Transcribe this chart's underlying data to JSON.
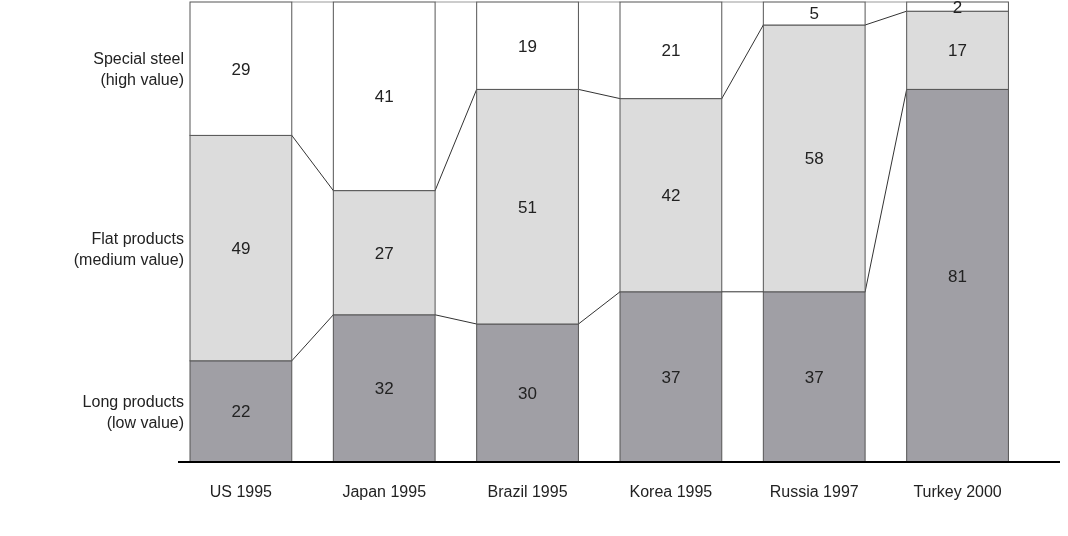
{
  "chart_data": {
    "type": "bar",
    "stacked": true,
    "categories": [
      "US 1995",
      "Japan 1995",
      "Brazil 1995",
      "Korea 1995",
      "Russia 1997",
      "Turkey 2000"
    ],
    "series": [
      {
        "name": "Long products\n(low value)",
        "color": "#a09fa5",
        "values": [
          22,
          32,
          30,
          37,
          37,
          81
        ]
      },
      {
        "name": "Flat products\n(medium value)",
        "color": "#dcdcdc",
        "values": [
          49,
          27,
          51,
          42,
          58,
          17
        ]
      },
      {
        "name": "Special steel\n(high value)",
        "color": "#ffffff",
        "values": [
          29,
          41,
          19,
          21,
          5,
          2
        ]
      }
    ],
    "ylim": [
      0,
      100
    ],
    "tick_labels": "x",
    "data_labels": true,
    "legend": "left"
  }
}
